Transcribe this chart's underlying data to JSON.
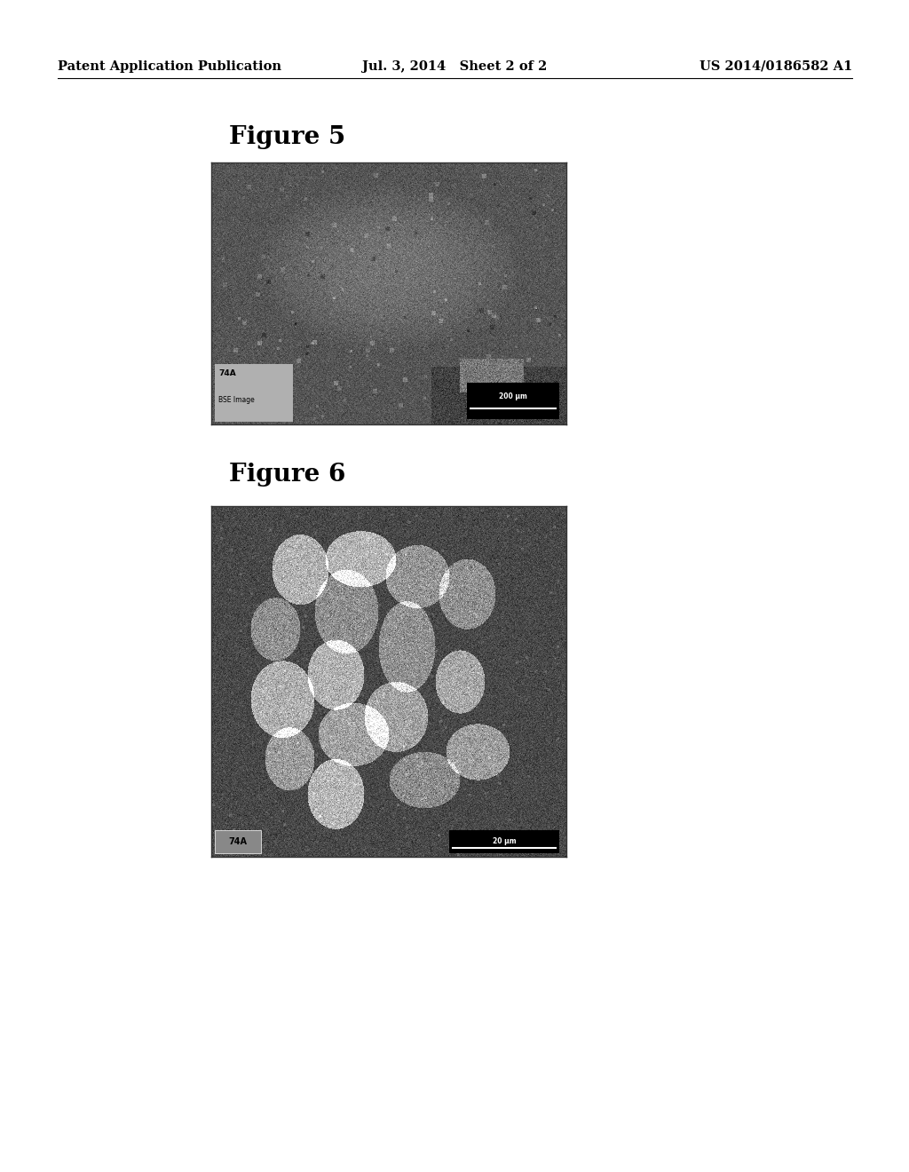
{
  "background_color": "#ffffff",
  "header_left": "Patent Application Publication",
  "header_center": "Jul. 3, 2014   Sheet 2 of 2",
  "header_right": "US 2014/0186582 A1",
  "header_fontsize": 10.5,
  "fig5_title": "Figure 5",
  "fig5_title_fontsize": 20,
  "fig5_label1": "74A",
  "fig5_label2": "BSE Image",
  "fig5_scalebar": "200 μm",
  "fig6_title": "Figure 6",
  "fig6_title_fontsize": 20,
  "fig6_label": "74A",
  "fig6_scalebar": "20 μm"
}
